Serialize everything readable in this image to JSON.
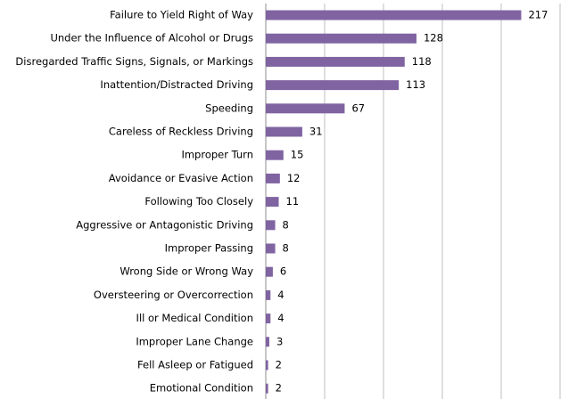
{
  "chart_data": {
    "type": "bar",
    "orientation": "horizontal",
    "categories": [
      "Failure to Yield Right of Way",
      "Under the Influence of Alcohol or Drugs",
      "Disregarded Traffic Signs, Signals, or Markings",
      "Inattention/Distracted Driving",
      "Speeding",
      "Careless of Reckless Driving",
      "Improper Turn",
      "Avoidance or Evasive Action",
      "Following Too Closely",
      "Aggressive or Antagonistic Driving",
      "Improper Passing",
      "Wrong Side or Wrong Way",
      "Oversteering or Overcorrection",
      "Ill or Medical Condition",
      "Improper Lane Change",
      "Fell Asleep or Fatigued",
      "Emotional Condition"
    ],
    "values": [
      217,
      128,
      118,
      113,
      67,
      31,
      15,
      12,
      11,
      8,
      8,
      6,
      4,
      4,
      3,
      2,
      2
    ],
    "color": "#8064a2",
    "xlim": [
      0,
      250
    ],
    "xticks": [
      0,
      50,
      100,
      150,
      200,
      250
    ],
    "grid": true
  }
}
